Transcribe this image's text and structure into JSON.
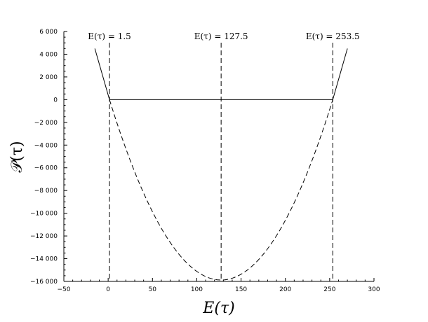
{
  "chart_data": {
    "type": "line",
    "xlabel": "E(τ)",
    "ylabel": "𝒫(τ)",
    "xlim": [
      -50,
      300
    ],
    "ylim": [
      -16000,
      6000
    ],
    "xticks": [
      -50,
      0,
      50,
      100,
      150,
      200,
      250,
      300
    ],
    "yticks": [
      6000,
      4000,
      2000,
      0,
      -2000,
      -4000,
      -6000,
      -8000,
      -10000,
      -12000,
      -14000,
      -16000
    ],
    "xtick_labels": [
      "−50",
      "0",
      "50",
      "100",
      "150",
      "200",
      "250",
      "300"
    ],
    "ytick_labels": [
      "6 000",
      "4 000",
      "2 000",
      "0",
      "−2 000",
      "−4 000",
      "−6 000",
      "−8 000",
      "−10 000",
      "−12 000",
      "−14 000",
      "−16 000"
    ],
    "grid": false,
    "series": [
      {
        "style": "solid",
        "points": [
          [
            -15,
            4500
          ],
          [
            1.5,
            0
          ]
        ]
      },
      {
        "style": "solid",
        "points": [
          [
            1.5,
            0
          ],
          [
            253.5,
            0
          ]
        ]
      },
      {
        "style": "solid",
        "points": [
          [
            253.5,
            0
          ],
          [
            270,
            4500
          ]
        ]
      },
      {
        "style": "dashed",
        "parabola": {
          "roots": [
            1.5,
            253.5
          ],
          "vertex": [
            127.5,
            -15876
          ]
        }
      }
    ],
    "vlines": [
      {
        "x": 1.5,
        "label": "E(τ) = 1.5"
      },
      {
        "x": 127.5,
        "label": "E(τ) = 127.5"
      },
      {
        "x": 253.5,
        "label": "E(τ) = 253.5"
      }
    ]
  }
}
